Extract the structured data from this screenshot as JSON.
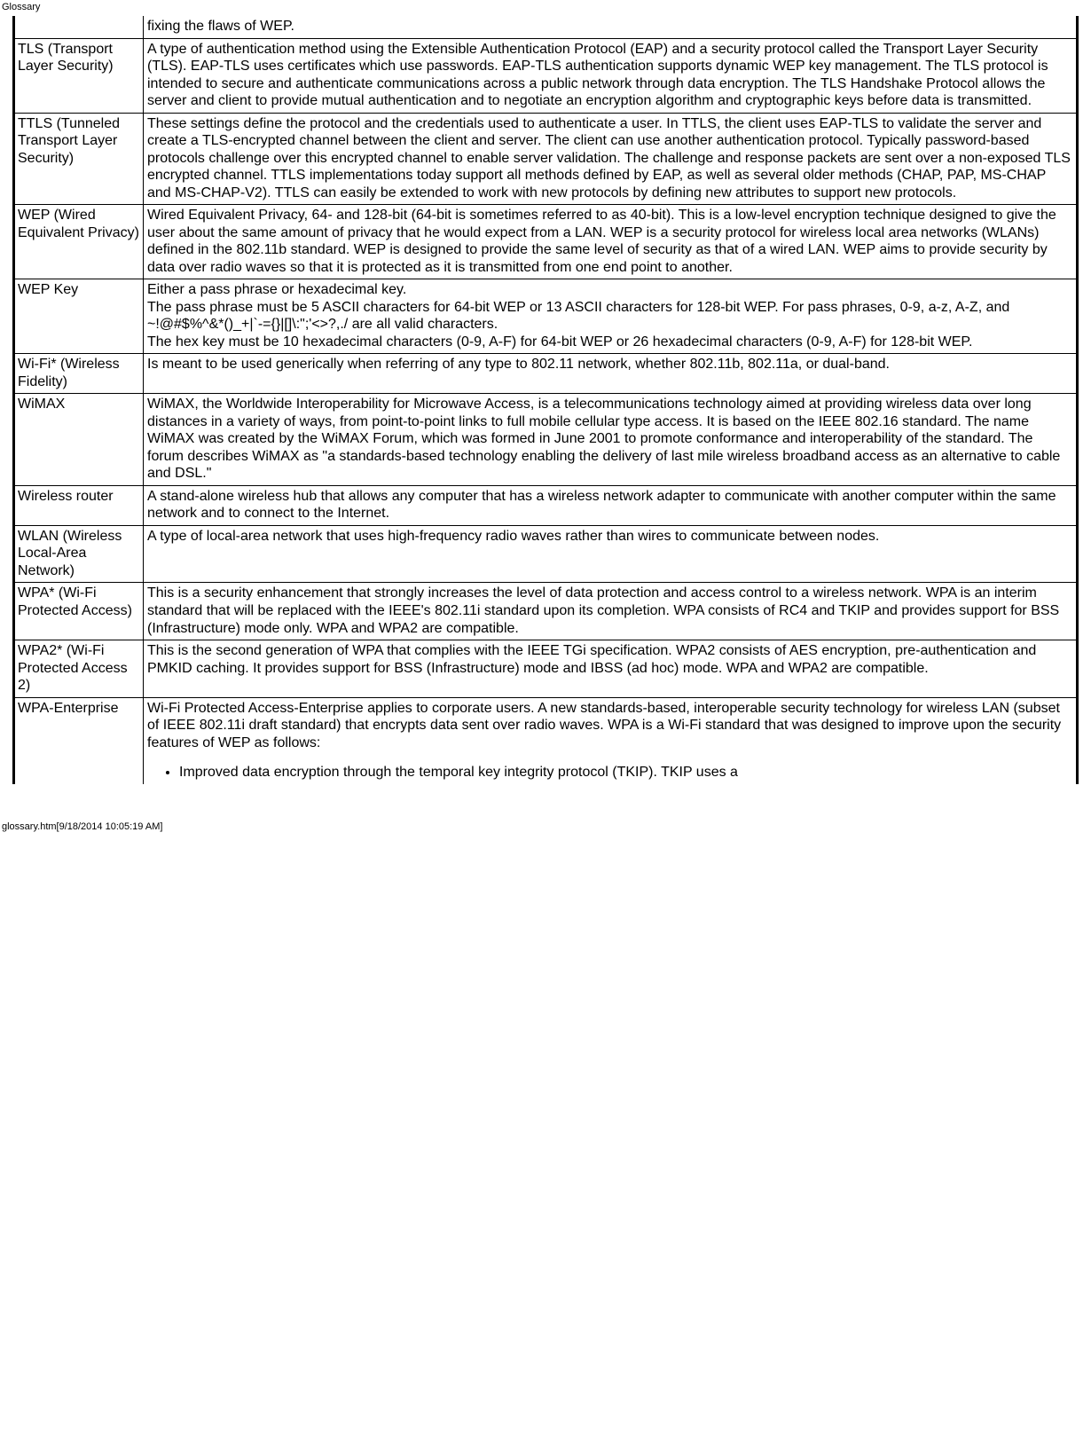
{
  "header": {
    "title": "Glossary"
  },
  "table": {
    "rows": [
      {
        "key": "continued_top",
        "term": "",
        "def": "fixing the flaws of WEP.",
        "continued": true
      },
      {
        "key": "tls",
        "term": "TLS (Transport Layer Security)",
        "def": "A type of authentication method using the Extensible Authentication Protocol (EAP) and a security protocol called the Transport Layer Security (TLS). EAP-TLS uses certificates which use passwords. EAP-TLS authentication supports dynamic WEP key management. The TLS protocol is intended to secure and authenticate communications across a public network through data encryption. The TLS Handshake Protocol allows the server and client to provide mutual authentication and to negotiate an encryption algorithm and cryptographic keys before data is transmitted."
      },
      {
        "key": "ttls",
        "term": "TTLS (Tunneled Transport Layer Security)",
        "def": "These settings define the protocol and the credentials used to authenticate a user. In TTLS, the client uses EAP-TLS to validate the server and create a TLS-encrypted channel between the client and server. The client can use another authentication protocol. Typically password-based protocols challenge over this encrypted channel to enable server validation. The challenge and response packets are sent over a non-exposed TLS encrypted channel. TTLS implementations today support all methods defined by EAP, as well as several older methods (CHAP, PAP, MS-CHAP and MS-CHAP-V2). TTLS can easily be extended to work with new protocols by defining new attributes to support new protocols."
      },
      {
        "key": "wep",
        "term": "WEP (Wired Equivalent Privacy)",
        "def": "Wired Equivalent Privacy, 64- and 128-bit (64-bit is sometimes referred to as 40-bit). This is a low-level encryption technique designed to give the user about the same amount of privacy that he would expect from a LAN. WEP is a security protocol for wireless local area networks (WLANs) defined in the 802.11b standard. WEP is designed to provide the same level of security as that of a wired LAN. WEP aims to provide security by data over radio waves so that it is protected as it is transmitted from one end point to another."
      },
      {
        "key": "wepkey",
        "term": "WEP Key",
        "def": "Either a pass phrase or hexadecimal key.\nThe pass phrase must be 5 ASCII characters for 64-bit WEP or 13 ASCII characters for 128-bit WEP. For pass phrases, 0-9, a-z, A-Z, and ~!@#$%^&*()_+|`-={}|[]\\:\";'<>?,./ are all valid characters.\nThe hex key must be 10 hexadecimal characters (0-9, A-F) for 64-bit WEP or 26 hexadecimal characters (0-9, A-F) for 128-bit WEP."
      },
      {
        "key": "wifi",
        "term": "Wi-Fi* (Wireless Fidelity)",
        "def": "Is meant to be used generically when referring of any type to 802.11 network, whether 802.11b, 802.11a, or dual-band."
      },
      {
        "key": "wimax",
        "term": "WiMAX",
        "def": "WiMAX, the Worldwide Interoperability for Microwave Access, is a telecommunications technology aimed at providing wireless data over long distances in a variety of ways, from point-to-point links to full mobile cellular type access. It is based on the IEEE 802.16 standard. The name WiMAX was created by the WiMAX Forum, which was formed in June 2001 to promote conformance and interoperability of the standard. The forum describes WiMAX as \"a standards-based technology enabling the delivery of last mile wireless broadband access as an alternative to cable and DSL.\""
      },
      {
        "key": "wrouter",
        "term": "Wireless router",
        "def": "A stand-alone wireless hub that allows any computer that has a wireless network adapter to communicate with another computer within the same network and to connect to the Internet."
      },
      {
        "key": "wlan",
        "term": "WLAN (Wireless Local-Area Network)",
        "def": "A type of local-area network that uses high-frequency radio waves rather than wires to communicate between nodes."
      },
      {
        "key": "wpa",
        "term": "WPA* (Wi-Fi Protected Access)",
        "def": "This is a security enhancement that strongly increases the level of data protection and access control to a wireless network. WPA is an interim standard that will be replaced with the IEEE's 802.11i standard upon its completion. WPA consists of RC4 and TKIP and provides support for BSS (Infrastructure) mode only. WPA and WPA2 are compatible."
      },
      {
        "key": "wpa2",
        "term": "WPA2* (Wi-Fi Protected Access 2)",
        "def": "This is the second generation of WPA that complies with the IEEE TGi specification. WPA2 consists of AES encryption, pre-authentication and PMKID caching. It provides support for BSS (Infrastructure) mode and IBSS (ad hoc) mode. WPA and WPA2 are compatible."
      },
      {
        "key": "wpaent",
        "term": "WPA-Enterprise",
        "def_para": "Wi-Fi Protected Access-Enterprise applies to corporate users. A new standards-based, interoperable security technology for wireless LAN (subset of IEEE 802.11i draft standard) that encrypts data sent over radio waves. WPA is a Wi-Fi standard that was designed to improve upon the security features of WEP as follows:",
        "def_bullets": [
          "Improved data encryption through the temporal key integrity protocol (TKIP). TKIP uses a"
        ]
      }
    ]
  },
  "footer": {
    "text": "glossary.htm[9/18/2014 10:05:19 AM]"
  }
}
